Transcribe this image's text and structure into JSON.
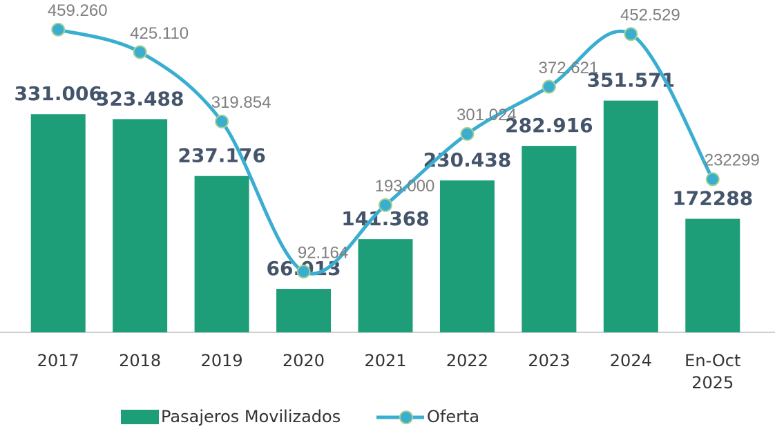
{
  "chart_data": {
    "type": "bar_line",
    "categories": [
      "2017",
      "2018",
      "2019",
      "2020",
      "2021",
      "2022",
      "2023",
      "2024",
      "En-Oct 2025"
    ],
    "series": [
      {
        "name": "Pasajeros Movilizados",
        "type": "bar",
        "color": "#1e9e78",
        "values": [
          331006,
          323488,
          237176,
          66013,
          141368,
          230438,
          282916,
          351571,
          172288
        ],
        "value_labels": [
          "331.006",
          "323.488",
          "237.176",
          "66.013",
          "141.368",
          "230.438",
          "282.916",
          "351.571",
          "172288"
        ]
      },
      {
        "name": "Oferta",
        "type": "line",
        "color": "#3aaed0",
        "values": [
          459260,
          425110,
          319854,
          92164,
          193000,
          301024,
          372621,
          452529,
          232299
        ],
        "value_labels": [
          "459.260",
          "425.110",
          "319.854",
          "92.164",
          "193.000",
          "301.024",
          "372.621",
          "452.529",
          "232299"
        ]
      }
    ],
    "ylim": [
      0,
      500000
    ]
  }
}
